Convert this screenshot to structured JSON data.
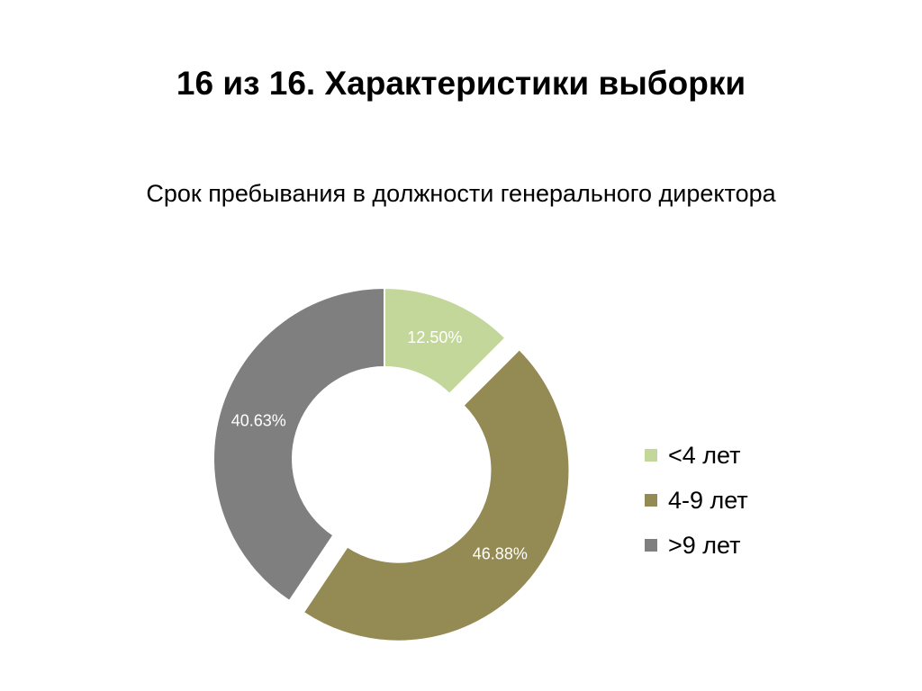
{
  "slide": {
    "title": "16 из 16. Характеристики выборки"
  },
  "chart_data": {
    "type": "pie",
    "donut": true,
    "title": "Срок пребывания в должности генерального директора",
    "categories": [
      "<4 лет",
      "4-9 лет",
      ">9 лет"
    ],
    "values": [
      12.5,
      46.88,
      40.63
    ],
    "value_labels": [
      "12.50%",
      "46.88%",
      "40.63%"
    ],
    "colors": [
      "#c4d79b",
      "#948a54",
      "#7f7f7f"
    ],
    "exploded": [
      "4-9 лет"
    ],
    "legend": "right"
  }
}
